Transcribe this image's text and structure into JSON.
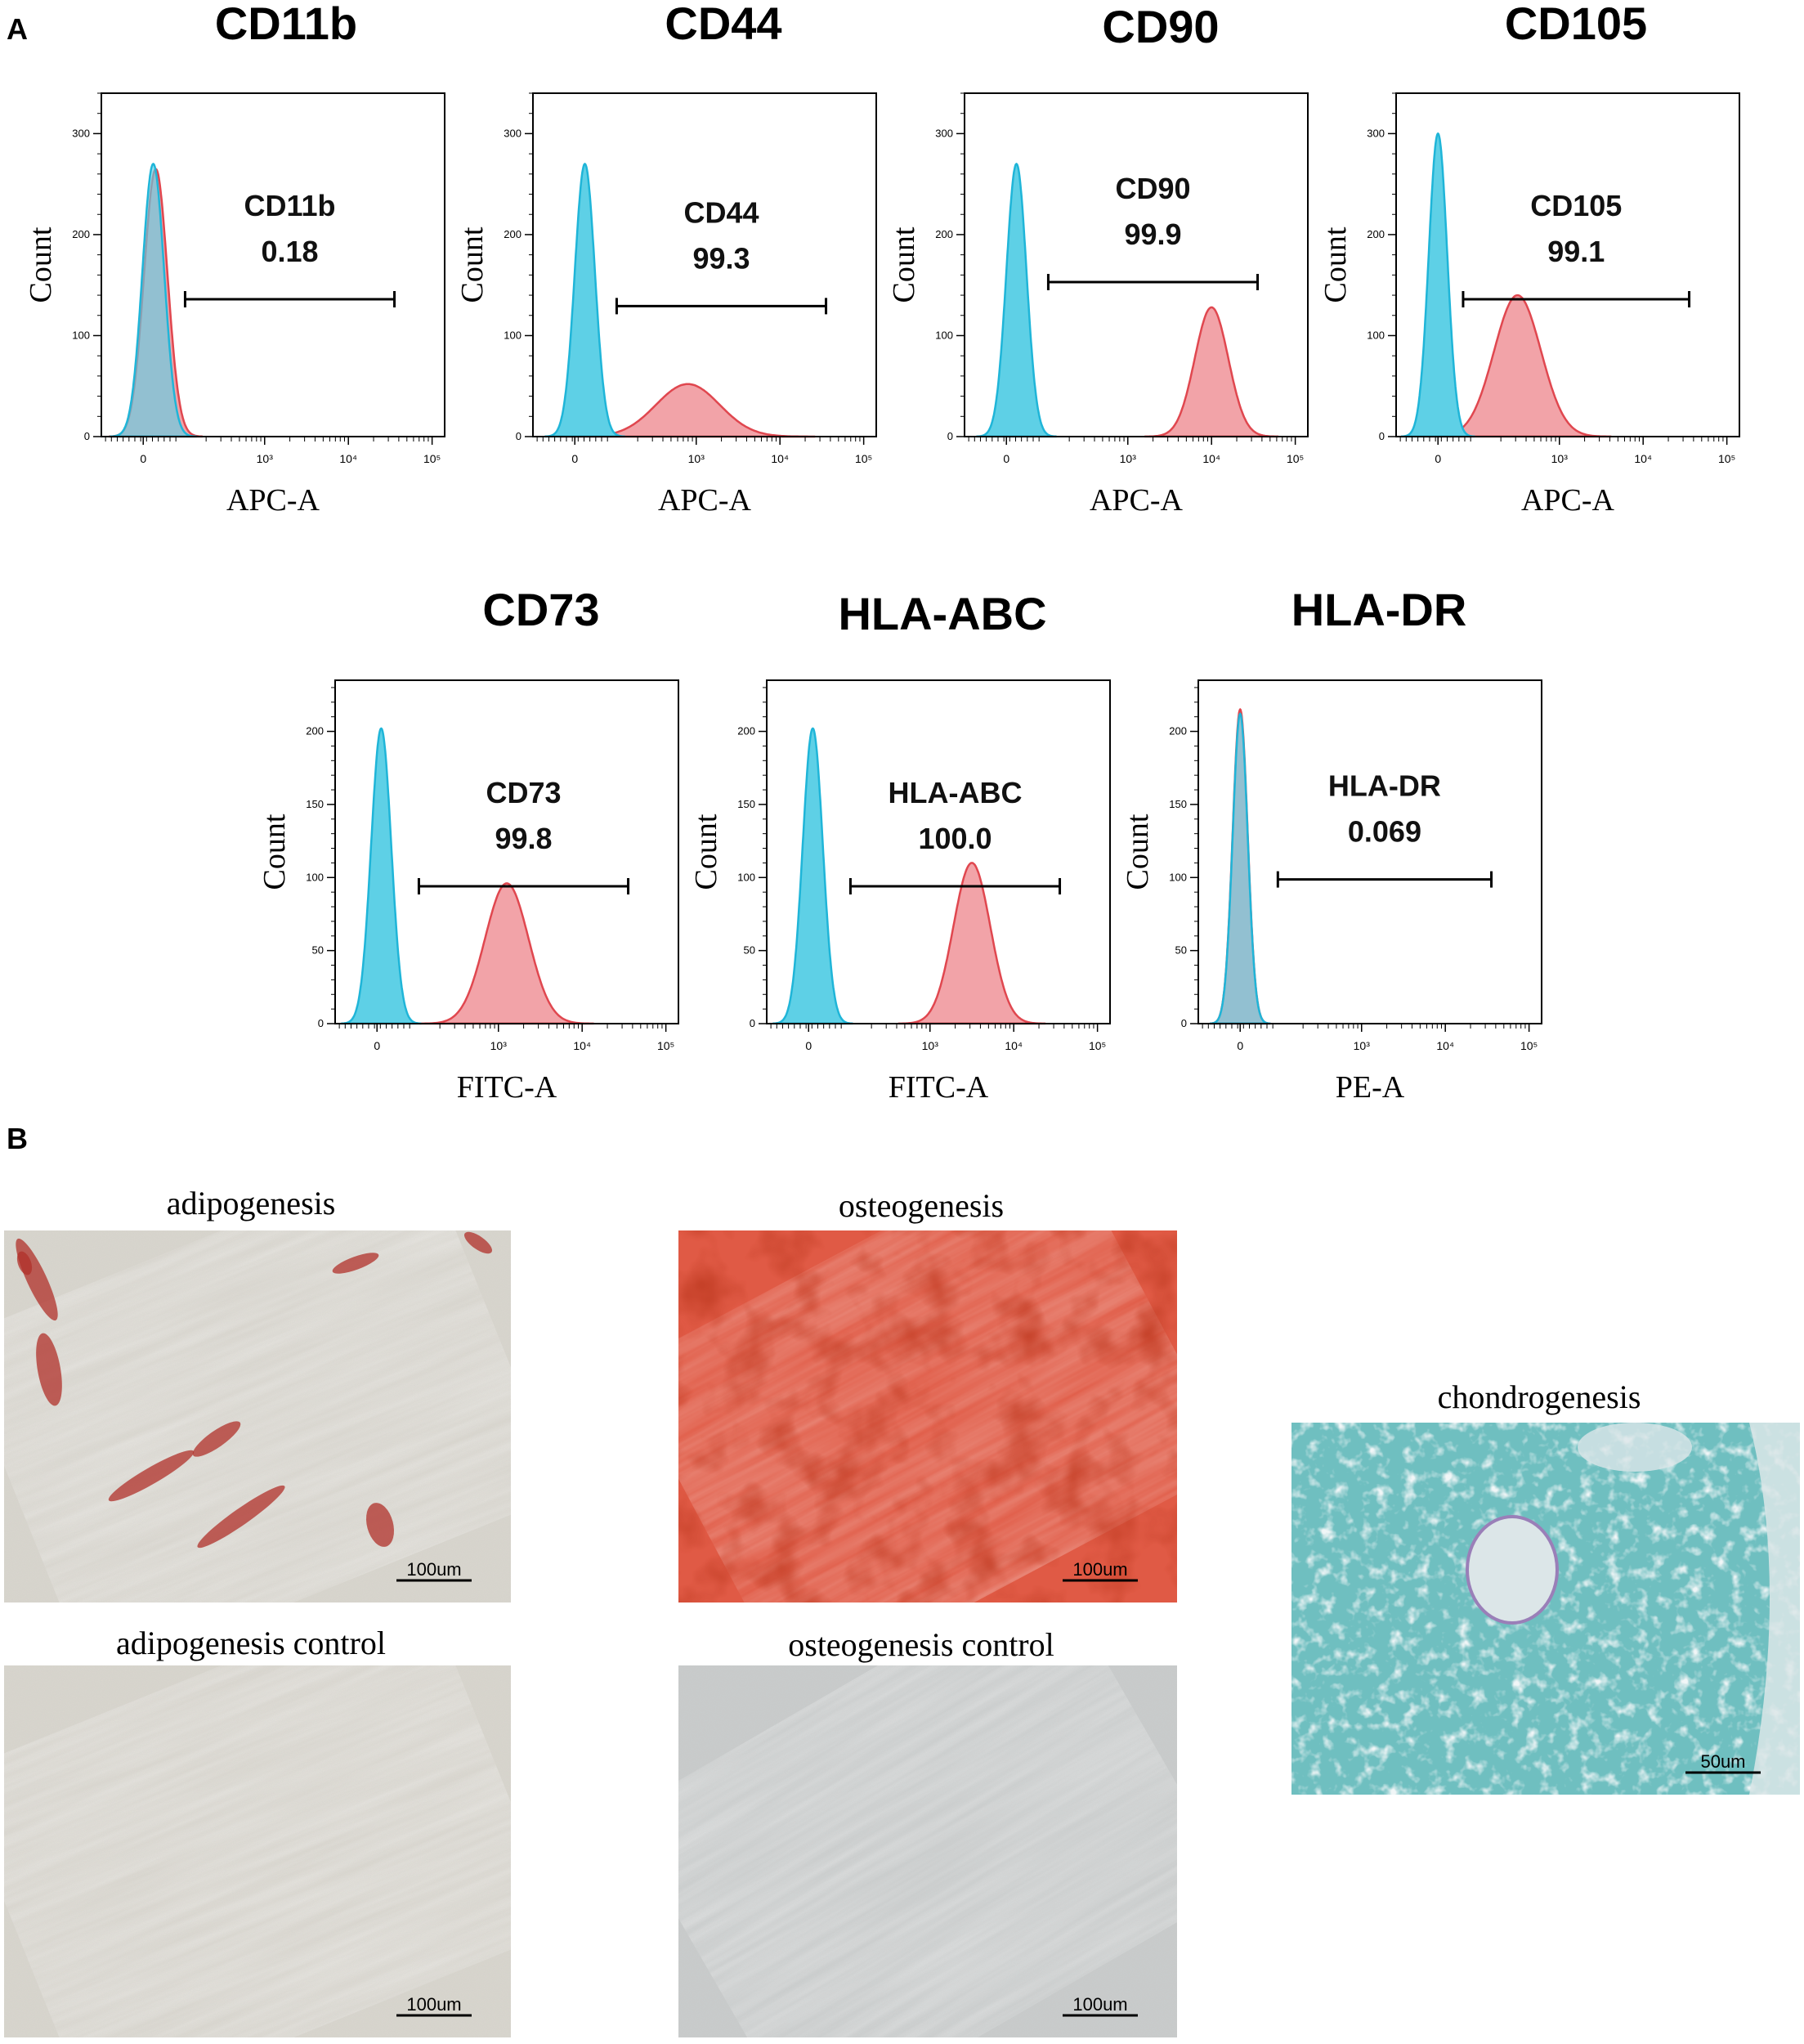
{
  "panel_labels": {
    "a": "A",
    "b": "B"
  },
  "colors": {
    "control_fill": "#5ED0E6",
    "control_stroke": "#1FB5D8",
    "sample_fill": "#F2A3A8",
    "sample_stroke": "#E0474F",
    "overlap_fill": "#7E9FC2",
    "adipo_bg": "#D9D6CE",
    "adipo_stain": "#B0302A",
    "osteo_bg": "#E05A45",
    "osteo_dark": "#B8261A",
    "control_bg": "#D6D4CE",
    "osteo_control_bg": "#C9CCCC",
    "chondro_bg": "#6FBFC0",
    "chondro_light": "#DCE6E8"
  },
  "chart_data": [
    {
      "type": "area",
      "marker": "CD11b",
      "title": "CD11b",
      "ylabel": "Count",
      "xlabel": "APC-A",
      "yticks": [
        "0",
        "100",
        "200",
        "300"
      ],
      "ylim": [
        0,
        340
      ],
      "xticks": [
        "0",
        "10³",
        "10⁴",
        "10⁵"
      ],
      "gate": {
        "name": "CD11b",
        "percent": "0.18",
        "range": [
          0.5,
          3.0
        ]
      },
      "series": [
        {
          "role": "control",
          "peak_x": 0.12,
          "peak_y": 270,
          "width": 0.13
        },
        {
          "role": "sample",
          "peak_x": 0.15,
          "peak_y": 265,
          "width": 0.14
        }
      ]
    },
    {
      "type": "area",
      "marker": "CD44",
      "title": "CD44",
      "ylabel": "Count",
      "xlabel": "APC-A",
      "yticks": [
        "0",
        "100",
        "200",
        "300"
      ],
      "ylim": [
        0,
        340
      ],
      "xticks": [
        "0",
        "10³",
        "10⁴",
        "10⁵"
      ],
      "gate": {
        "name": "CD44",
        "percent": "99.3",
        "range": [
          0.5,
          3.0
        ]
      },
      "series": [
        {
          "role": "control",
          "peak_x": 0.12,
          "peak_y": 270,
          "width": 0.12
        },
        {
          "role": "sample",
          "peak_x": 1.35,
          "peak_y": 52,
          "width": 0.38
        }
      ]
    },
    {
      "type": "area",
      "marker": "CD90",
      "title": "CD90",
      "ylabel": "Count",
      "xlabel": "APC-A",
      "yticks": [
        "0",
        "100",
        "200",
        "300"
      ],
      "ylim": [
        0,
        340
      ],
      "xticks": [
        "0",
        "10³",
        "10⁴",
        "10⁵"
      ],
      "gate": {
        "name": "CD90",
        "percent": "99.9",
        "range": [
          0.5,
          3.0
        ]
      },
      "series": [
        {
          "role": "control",
          "peak_x": 0.12,
          "peak_y": 270,
          "width": 0.12
        },
        {
          "role": "sample",
          "peak_x": 2.45,
          "peak_y": 128,
          "width": 0.2
        }
      ]
    },
    {
      "type": "area",
      "marker": "CD105",
      "title": "CD105",
      "ylabel": "Count",
      "xlabel": "APC-A",
      "yticks": [
        "0",
        "100",
        "200",
        "300"
      ],
      "ylim": [
        0,
        340
      ],
      "xticks": [
        "0",
        "10³",
        "10⁴",
        "10⁵"
      ],
      "gate": {
        "name": "CD105",
        "percent": "99.1",
        "range": [
          0.3,
          3.0
        ]
      },
      "series": [
        {
          "role": "control",
          "peak_x": 0.0,
          "peak_y": 300,
          "width": 0.11
        },
        {
          "role": "sample",
          "peak_x": 0.95,
          "peak_y": 140,
          "width": 0.28
        }
      ]
    },
    {
      "type": "area",
      "marker": "CD73",
      "title": "CD73",
      "ylabel": "Count",
      "xlabel": "FITC-A",
      "yticks": [
        "0",
        "50",
        "100",
        "150",
        "200"
      ],
      "ylim": [
        0,
        235
      ],
      "xticks": [
        "0",
        "10³",
        "10⁴",
        "10⁵"
      ],
      "gate": {
        "name": "CD73",
        "percent": "99.8",
        "range": [
          0.5,
          3.0
        ]
      },
      "series": [
        {
          "role": "control",
          "peak_x": 0.05,
          "peak_y": 202,
          "width": 0.12
        },
        {
          "role": "sample",
          "peak_x": 1.55,
          "peak_y": 96,
          "width": 0.26
        }
      ]
    },
    {
      "type": "area",
      "marker": "HLA-ABC",
      "title": "HLA-ABC",
      "ylabel": "Count",
      "xlabel": "FITC-A",
      "yticks": [
        "0",
        "50",
        "100",
        "150",
        "200"
      ],
      "ylim": [
        0,
        235
      ],
      "xticks": [
        "0",
        "10³",
        "10⁴",
        "10⁵"
      ],
      "gate": {
        "name": "HLA-ABC",
        "percent": "100.0",
        "range": [
          0.5,
          3.0
        ]
      },
      "series": [
        {
          "role": "control",
          "peak_x": 0.05,
          "peak_y": 202,
          "width": 0.12
        },
        {
          "role": "sample",
          "peak_x": 1.95,
          "peak_y": 110,
          "width": 0.22
        }
      ]
    },
    {
      "type": "area",
      "marker": "HLA-DR",
      "title": "HLA-DR",
      "ylabel": "Count",
      "xlabel": "PE-A",
      "yticks": [
        "0",
        "50",
        "100",
        "150",
        "200"
      ],
      "ylim": [
        0,
        235
      ],
      "xticks": [
        "0",
        "10³",
        "10⁴",
        "10⁵"
      ],
      "gate": {
        "name": "HLA-DR",
        "percent": "0.069",
        "range": [
          0.45,
          3.0
        ]
      },
      "series": [
        {
          "role": "control",
          "peak_x": 0.0,
          "peak_y": 212,
          "width": 0.09
        },
        {
          "role": "sample",
          "peak_x": 0.0,
          "peak_y": 215,
          "width": 0.09
        }
      ]
    }
  ],
  "images": [
    {
      "key": "adipogenesis",
      "caption": "adipogenesis",
      "scale": "100um",
      "style": "adipo"
    },
    {
      "key": "osteogenesis",
      "caption": "osteogenesis",
      "scale": "100um",
      "style": "osteo"
    },
    {
      "key": "chondrogenesis",
      "caption": "chondrogenesis",
      "scale": "50um",
      "style": "chondro"
    },
    {
      "key": "adipogenesis-control",
      "caption": "adipogenesis control",
      "scale": "100um",
      "style": "adipo-control"
    },
    {
      "key": "osteogenesis-control",
      "caption": "osteogenesis control",
      "scale": "100um",
      "style": "osteo-control"
    }
  ]
}
